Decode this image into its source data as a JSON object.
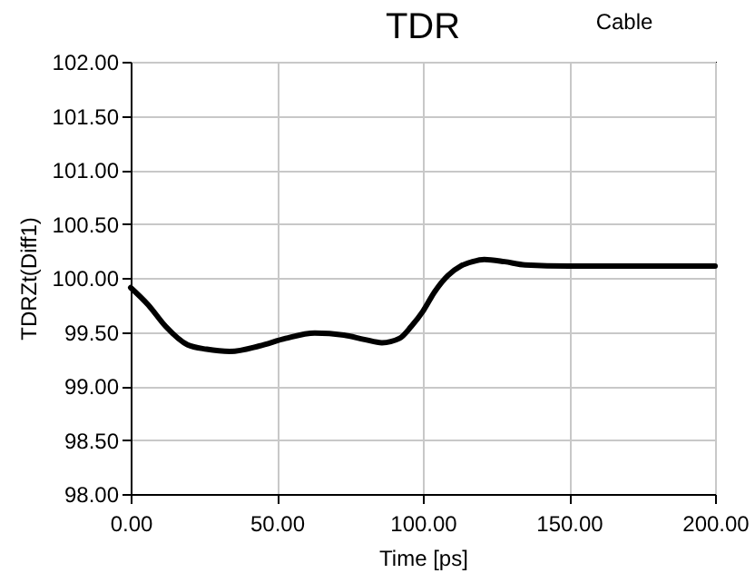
{
  "chart_data": {
    "type": "line",
    "title": "TDR",
    "annotations": [
      "Cable"
    ],
    "xlabel": "Time [ps]",
    "ylabel": "TDRZt(Diff1)",
    "x": [
      0,
      6,
      12,
      19.5,
      26,
      34,
      44,
      53,
      63,
      73,
      80,
      86,
      92,
      96,
      100,
      104,
      108.5,
      113,
      117,
      121,
      128,
      135,
      150,
      175,
      200
    ],
    "series": [
      {
        "color": "#000000",
        "values": [
          99.91,
          99.75,
          99.55,
          99.38,
          99.34,
          99.32,
          99.37,
          99.44,
          99.49,
          99.47,
          99.43,
          99.4,
          99.44,
          99.55,
          99.69,
          99.87,
          100.02,
          100.11,
          100.15,
          100.17,
          100.15,
          100.12,
          100.11,
          100.11,
          100.11
        ]
      }
    ],
    "xlim": [
      0,
      200
    ],
    "ylim": [
      98,
      102
    ],
    "xticks": [
      {
        "value": 0,
        "label": "0.00"
      },
      {
        "value": 50,
        "label": "50.00"
      },
      {
        "value": 100,
        "label": "100.00"
      },
      {
        "value": 150,
        "label": "150.00"
      },
      {
        "value": 200,
        "label": "200.00"
      }
    ],
    "yticks": [
      {
        "value": 98,
        "label": "98.00"
      },
      {
        "value": 98.5,
        "label": "98.50"
      },
      {
        "value": 99,
        "label": "99.00"
      },
      {
        "value": 99.5,
        "label": "99.50"
      },
      {
        "value": 100,
        "label": "100.00"
      },
      {
        "value": 100.5,
        "label": "100.50"
      },
      {
        "value": 101,
        "label": "101.00"
      },
      {
        "value": 101.5,
        "label": "101.50"
      },
      {
        "value": 102,
        "label": "102.00"
      }
    ],
    "grid": true,
    "marker": "none",
    "line_style": "solid"
  }
}
